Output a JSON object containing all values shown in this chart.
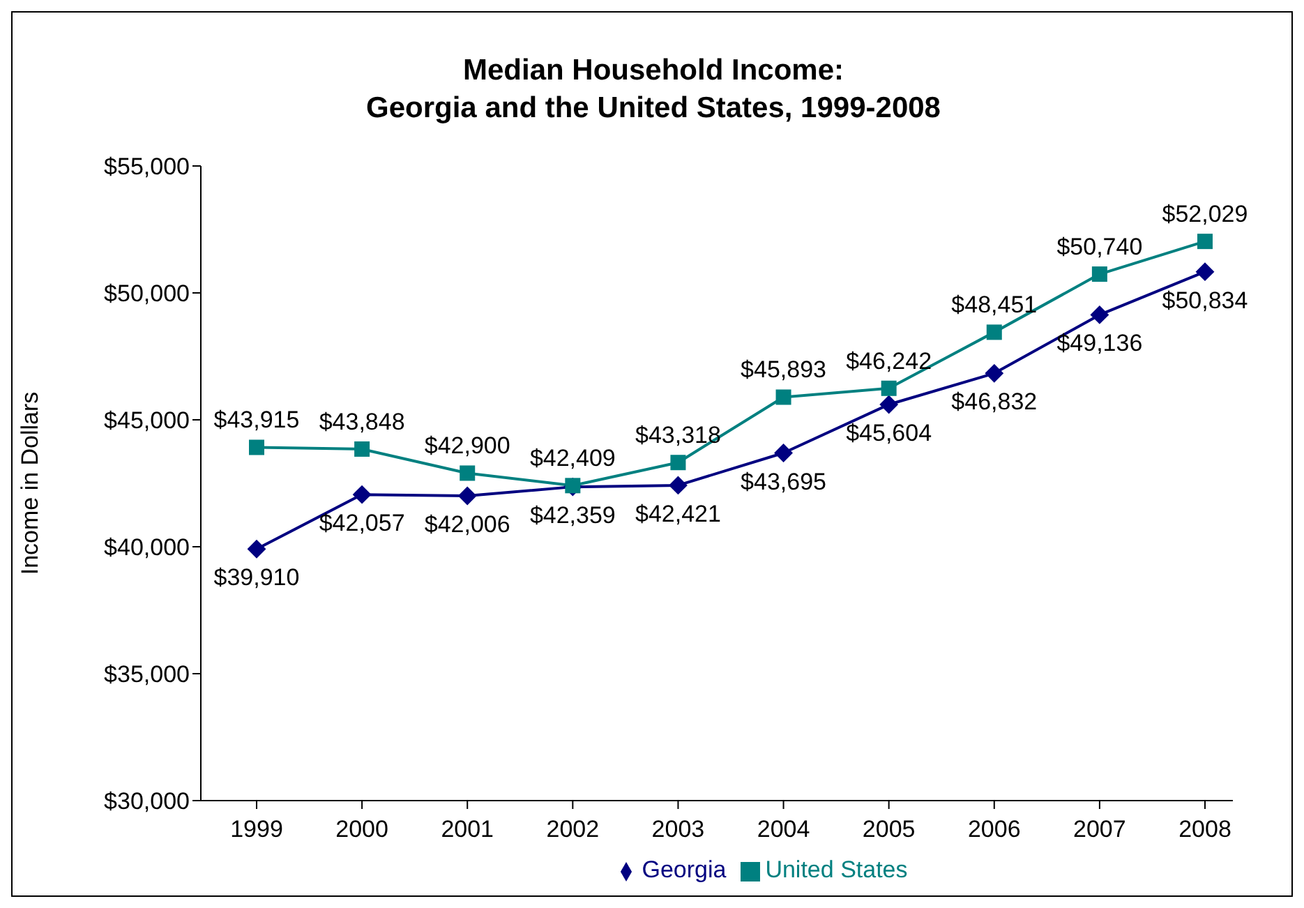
{
  "chart_data": {
    "type": "line",
    "title": "Median Household Income:\nGeorgia and the United States, 1999-2008",
    "ylabel": "Income in Dollars",
    "categories": [
      "1999",
      "2000",
      "2001",
      "2002",
      "2003",
      "2004",
      "2005",
      "2006",
      "2007",
      "2008"
    ],
    "series": [
      {
        "name": "Georgia",
        "color": "#000080",
        "marker": "diamond",
        "values": [
          39910,
          42057,
          42006,
          42359,
          42421,
          43695,
          45604,
          46832,
          49136,
          50834
        ],
        "value_labels": [
          "$39,910",
          "$42,057",
          "$42,006",
          "$42,359",
          "$42,421",
          "$43,695",
          "$45,604",
          "$46,832",
          "$49,136",
          "$50,834"
        ]
      },
      {
        "name": "United States",
        "color": "#008080",
        "marker": "square",
        "values": [
          43915,
          43848,
          42900,
          42409,
          43318,
          45893,
          46242,
          48451,
          50740,
          52029
        ],
        "value_labels": [
          "$43,915",
          "$43,848",
          "$42,900",
          "$42,409",
          "$43,318",
          "$45,893",
          "$46,242",
          "$48,451",
          "$50,740",
          "$52,029"
        ]
      }
    ],
    "ylim": [
      30000,
      55000
    ],
    "yticks": [
      {
        "value": 30000,
        "label": "$30,000"
      },
      {
        "value": 35000,
        "label": "$35,000"
      },
      {
        "value": 40000,
        "label": "$40,000"
      },
      {
        "value": 45000,
        "label": "$45,000"
      },
      {
        "value": 50000,
        "label": "$50,000"
      },
      {
        "value": 55000,
        "label": "$55,000"
      }
    ],
    "grid": false,
    "legend": "bottom",
    "line_style": "solid"
  }
}
